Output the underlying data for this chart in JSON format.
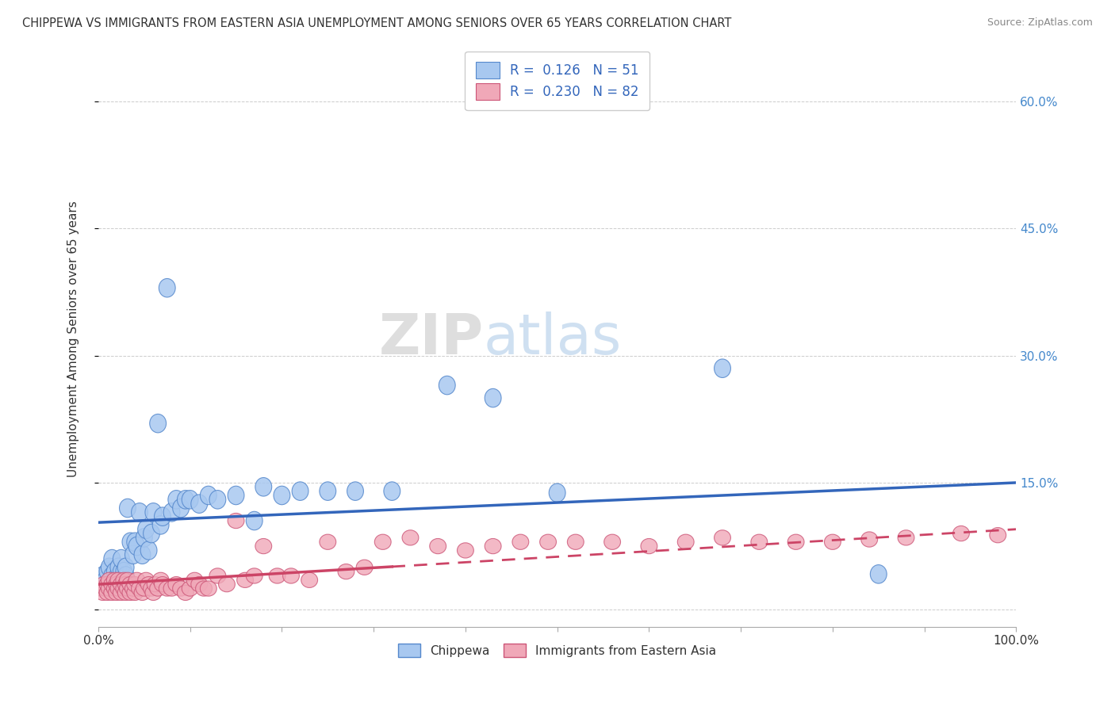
{
  "title": "CHIPPEWA VS IMMIGRANTS FROM EASTERN ASIA UNEMPLOYMENT AMONG SENIORS OVER 65 YEARS CORRELATION CHART",
  "source": "Source: ZipAtlas.com",
  "ylabel": "Unemployment Among Seniors over 65 years",
  "background_color": "#ffffff",
  "chippewa_color": "#a8c8f0",
  "chippewa_edge": "#5588cc",
  "eastern_asia_color": "#f0a8b8",
  "eastern_asia_edge": "#cc5577",
  "trend_chippewa_color": "#3366bb",
  "trend_eastern_asia_color": "#cc4466",
  "legend_R_chippewa": "0.126",
  "legend_N_chippewa": "51",
  "legend_R_eastern": "0.230",
  "legend_N_eastern": "82",
  "xmin": 0.0,
  "xmax": 1.0,
  "ymin": -0.02,
  "ymax": 0.66,
  "chip_trend_x0": 0.0,
  "chip_trend_y0": 0.103,
  "chip_trend_x1": 1.0,
  "chip_trend_y1": 0.15,
  "east_trend_x0": 0.0,
  "east_trend_y0": 0.03,
  "east_trend_y0_solid_end": 0.055,
  "east_trend_x_break": 0.32,
  "east_trend_x1": 1.0,
  "east_trend_y1": 0.095,
  "watermark_zip": "ZIP",
  "watermark_atlas": "atlas",
  "chippewa_x": [
    0.005,
    0.008,
    0.01,
    0.012,
    0.015,
    0.015,
    0.018,
    0.02,
    0.022,
    0.025,
    0.025,
    0.028,
    0.03,
    0.03,
    0.032,
    0.035,
    0.038,
    0.04,
    0.042,
    0.045,
    0.048,
    0.05,
    0.052,
    0.055,
    0.058,
    0.06,
    0.065,
    0.068,
    0.07,
    0.075,
    0.08,
    0.085,
    0.09,
    0.095,
    0.1,
    0.11,
    0.12,
    0.13,
    0.15,
    0.17,
    0.18,
    0.2,
    0.22,
    0.25,
    0.28,
    0.32,
    0.38,
    0.43,
    0.5,
    0.68,
    0.85
  ],
  "chippewa_y": [
    0.04,
    0.035,
    0.045,
    0.05,
    0.04,
    0.06,
    0.045,
    0.038,
    0.05,
    0.045,
    0.06,
    0.045,
    0.04,
    0.05,
    0.12,
    0.08,
    0.065,
    0.08,
    0.075,
    0.115,
    0.065,
    0.085,
    0.095,
    0.07,
    0.09,
    0.115,
    0.22,
    0.1,
    0.11,
    0.38,
    0.115,
    0.13,
    0.12,
    0.13,
    0.13,
    0.125,
    0.135,
    0.13,
    0.135,
    0.105,
    0.145,
    0.135,
    0.14,
    0.14,
    0.14,
    0.14,
    0.265,
    0.25,
    0.138,
    0.285,
    0.042
  ],
  "eastern_x": [
    0.003,
    0.005,
    0.006,
    0.008,
    0.01,
    0.01,
    0.012,
    0.012,
    0.015,
    0.015,
    0.018,
    0.018,
    0.02,
    0.02,
    0.022,
    0.022,
    0.025,
    0.025,
    0.028,
    0.028,
    0.03,
    0.03,
    0.032,
    0.032,
    0.035,
    0.035,
    0.038,
    0.04,
    0.04,
    0.042,
    0.045,
    0.048,
    0.05,
    0.052,
    0.055,
    0.058,
    0.06,
    0.062,
    0.065,
    0.068,
    0.07,
    0.075,
    0.08,
    0.085,
    0.09,
    0.095,
    0.1,
    0.105,
    0.11,
    0.115,
    0.12,
    0.13,
    0.14,
    0.15,
    0.16,
    0.17,
    0.18,
    0.195,
    0.21,
    0.23,
    0.25,
    0.27,
    0.29,
    0.31,
    0.34,
    0.37,
    0.4,
    0.43,
    0.46,
    0.49,
    0.52,
    0.56,
    0.6,
    0.64,
    0.68,
    0.72,
    0.76,
    0.8,
    0.84,
    0.88,
    0.94,
    0.98
  ],
  "eastern_y": [
    0.025,
    0.02,
    0.03,
    0.025,
    0.02,
    0.03,
    0.025,
    0.035,
    0.02,
    0.03,
    0.025,
    0.035,
    0.02,
    0.03,
    0.025,
    0.035,
    0.02,
    0.03,
    0.025,
    0.035,
    0.02,
    0.03,
    0.025,
    0.035,
    0.02,
    0.03,
    0.025,
    0.02,
    0.03,
    0.035,
    0.025,
    0.02,
    0.025,
    0.035,
    0.03,
    0.025,
    0.02,
    0.03,
    0.025,
    0.035,
    0.03,
    0.025,
    0.025,
    0.03,
    0.025,
    0.02,
    0.025,
    0.035,
    0.03,
    0.025,
    0.025,
    0.04,
    0.03,
    0.105,
    0.035,
    0.04,
    0.075,
    0.04,
    0.04,
    0.035,
    0.08,
    0.045,
    0.05,
    0.08,
    0.085,
    0.075,
    0.07,
    0.075,
    0.08,
    0.08,
    0.08,
    0.08,
    0.075,
    0.08,
    0.085,
    0.08,
    0.08,
    0.08,
    0.083,
    0.085,
    0.09,
    0.088
  ]
}
